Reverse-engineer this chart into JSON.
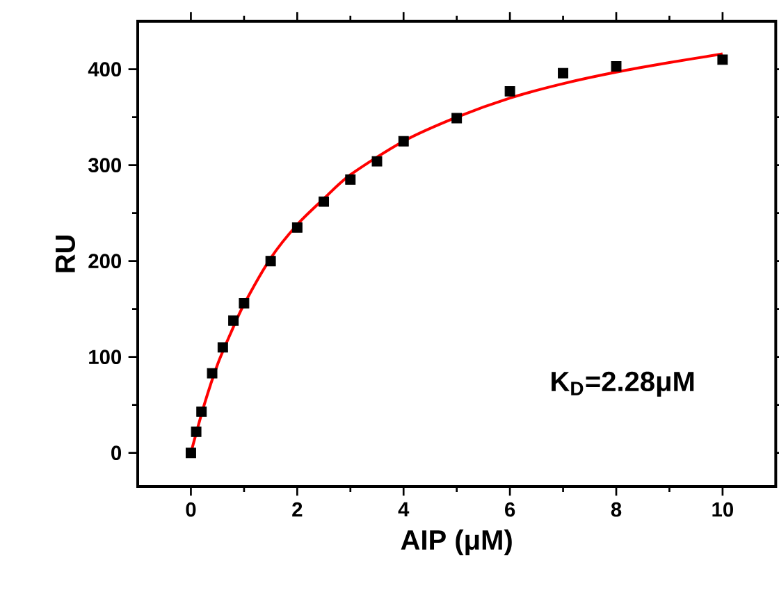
{
  "chart_data": {
    "type": "scatter",
    "xlabel": "AIP (μM)",
    "ylabel": "RU",
    "xlim": [
      -1,
      11
    ],
    "ylim": [
      -35,
      450
    ],
    "xticks": [
      0,
      2,
      4,
      6,
      8,
      10
    ],
    "yticks": [
      0,
      100,
      200,
      300,
      400
    ],
    "grid": false,
    "annotations": [
      "K$_{D}$=2.28μM"
    ],
    "series": [
      {
        "color": "#000000",
        "marker": "square",
        "x": [
          0,
          0.1,
          0.2,
          0.4,
          0.6,
          0.8,
          1.0,
          1.5,
          2.0,
          2.5,
          3.0,
          3.5,
          4.0,
          5.0,
          6.0,
          7.0,
          8.0,
          10.0
        ],
        "values": [
          0,
          22,
          43,
          83,
          110,
          138,
          156,
          200,
          235,
          262,
          285,
          304,
          325,
          349,
          377,
          396,
          403,
          410
        ]
      },
      {
        "type": "line",
        "color": "#ff0000",
        "marker": "none",
        "line_style": "solid",
        "x": [
          0,
          0.25,
          0.5,
          0.75,
          1,
          1.5,
          2,
          2.5,
          3,
          4,
          5,
          6,
          7,
          8,
          9,
          10
        ],
        "values": [
          0,
          50,
          92,
          125,
          155,
          203,
          238,
          265,
          290,
          325,
          350,
          370,
          385,
          397,
          407,
          416
        ]
      }
    ]
  }
}
